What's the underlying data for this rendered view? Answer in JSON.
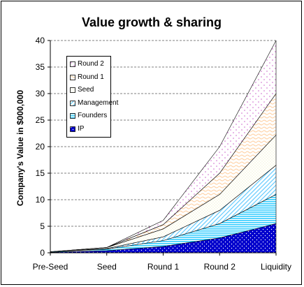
{
  "chart_data": {
    "type": "area",
    "stacked": true,
    "title": "Value growth & sharing",
    "ylabel": "Company's Value in $000,000",
    "xlabel": "",
    "categories": [
      "Pre-Seed",
      "Seed",
      "Round 1",
      "Round 2",
      "Liquidity"
    ],
    "ylim": [
      0,
      40
    ],
    "yticks": [
      0,
      5,
      10,
      15,
      20,
      25,
      30,
      35,
      40
    ],
    "grid": true,
    "legend_position": "top-left",
    "series": [
      {
        "name": "IP",
        "values": [
          0.1,
          0.4,
          1.2,
          2.8,
          5.5
        ],
        "color": "#0000CC",
        "pattern": "dots"
      },
      {
        "name": "Founders",
        "values": [
          0.1,
          0.3,
          1.1,
          2.7,
          5.5
        ],
        "color": "#33CCFF",
        "pattern": "horizontal"
      },
      {
        "name": "Management",
        "values": [
          0,
          0.1,
          0.7,
          2.5,
          5.5
        ],
        "color": "#66CCFF",
        "pattern": "diagonal"
      },
      {
        "name": "Seed",
        "values": [
          0,
          0.2,
          1.5,
          3.0,
          5.7
        ],
        "color": "#FFFFCC",
        "pattern": "fine-dots"
      },
      {
        "name": "Round 1",
        "values": [
          0,
          0,
          0.8,
          4.0,
          7.8
        ],
        "color": "#FFCC99",
        "pattern": "waves"
      },
      {
        "name": "Round 2",
        "values": [
          0,
          0,
          0.8,
          5.0,
          10.0
        ],
        "color": "#CC99CC",
        "pattern": "sparse-dots"
      }
    ]
  }
}
